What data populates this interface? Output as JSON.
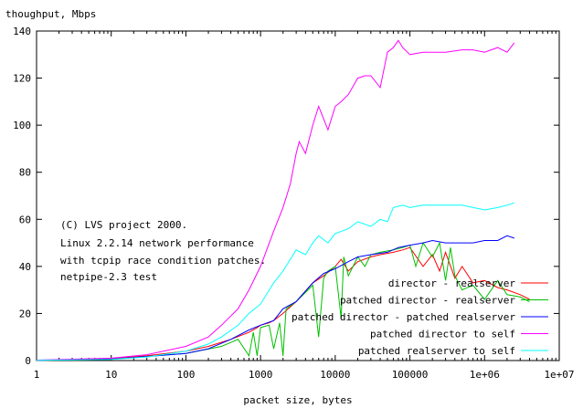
{
  "chart_data": {
    "type": "line",
    "title": "",
    "ylabel": "thoughput, Mbps",
    "xlabel": "packet size, bytes",
    "xscale": "log",
    "xlim": [
      1,
      10000000
    ],
    "ylim": [
      0,
      140
    ],
    "xticks": [
      {
        "value": 1,
        "label": "1"
      },
      {
        "value": 10,
        "label": "10"
      },
      {
        "value": 100,
        "label": "100"
      },
      {
        "value": 1000,
        "label": "1000"
      },
      {
        "value": 10000,
        "label": "10000"
      },
      {
        "value": 100000,
        "label": "100000"
      },
      {
        "value": 1000000,
        "label": "1e+06"
      },
      {
        "value": 10000000,
        "label": "1e+07"
      }
    ],
    "yticks": [
      0,
      20,
      40,
      60,
      80,
      100,
      120,
      140
    ],
    "grid": false,
    "legend_position": "bottom-right",
    "annotation": [
      "(C) LVS project 2000.",
      "Linux 2.2.14 network performance",
      "with tcpip race condition patches.",
      "netpipe-2.3 test"
    ],
    "series": [
      {
        "name": "director -             realserver",
        "color": "#ff0000",
        "x": [
          1,
          3,
          10,
          30,
          100,
          200,
          400,
          700,
          900,
          1000,
          1300,
          1500,
          2000,
          3000,
          5000,
          7000,
          10000,
          12000,
          15000,
          20000,
          30000,
          40000,
          60000,
          80000,
          100000,
          150000,
          200000,
          250000,
          300000,
          400000,
          500000,
          700000,
          1000000,
          1500000,
          2000000,
          3000000,
          4000000
        ],
        "y": [
          0.1,
          0.3,
          0.8,
          2,
          4,
          6,
          9,
          12,
          14,
          15,
          16,
          17,
          20,
          25,
          33,
          36,
          40,
          43,
          38,
          42,
          44,
          45,
          46,
          47,
          48,
          40,
          45,
          38,
          46,
          35,
          40,
          33,
          34,
          31,
          30,
          28,
          26
        ]
      },
      {
        "name": "patched director -      realserver",
        "color": "#00c000",
        "x": [
          1,
          10,
          100,
          300,
          500,
          700,
          800,
          900,
          1000,
          1300,
          1500,
          1800,
          2000,
          2200,
          3000,
          5000,
          6000,
          7000,
          8000,
          10000,
          12000,
          13000,
          15000,
          20000,
          25000,
          30000,
          40000,
          60000,
          80000,
          100000,
          120000,
          150000,
          200000,
          250000,
          300000,
          350000,
          400000,
          500000,
          700000,
          1000000,
          1500000,
          2000000,
          3000000,
          4000000
        ],
        "y": [
          0.1,
          0.5,
          3,
          6,
          9,
          2,
          12,
          2,
          14,
          15,
          5,
          16,
          2,
          22,
          25,
          32,
          10,
          35,
          38,
          40,
          18,
          44,
          36,
          44,
          40,
          45,
          46,
          47,
          48,
          49,
          40,
          50,
          44,
          50,
          34,
          48,
          36,
          30,
          32,
          26,
          34,
          28,
          27,
          25
        ]
      },
      {
        "name": "patched director - patched realserver",
        "color": "#0000ff",
        "x": [
          1,
          10,
          100,
          200,
          400,
          700,
          1000,
          1500,
          2000,
          3000,
          5000,
          7000,
          10000,
          15000,
          20000,
          30000,
          50000,
          70000,
          100000,
          150000,
          200000,
          300000,
          500000,
          700000,
          1000000,
          1500000,
          2000000,
          2500000
        ],
        "y": [
          0.1,
          0.6,
          3,
          5,
          9,
          13,
          15,
          17,
          22,
          25,
          33,
          37,
          39,
          42,
          44,
          45,
          46,
          48,
          49,
          50,
          51,
          50,
          50,
          50,
          51,
          51,
          53,
          52
        ]
      },
      {
        "name": "patched director to self",
        "color": "#ff00ff",
        "x": [
          1,
          10,
          30,
          100,
          200,
          300,
          500,
          700,
          1000,
          1500,
          2000,
          2500,
          3000,
          3300,
          4000,
          5000,
          6000,
          8000,
          10000,
          12000,
          15000,
          20000,
          25000,
          30000,
          40000,
          50000,
          60000,
          70000,
          80000,
          100000,
          150000,
          200000,
          300000,
          500000,
          700000,
          1000000,
          1500000,
          2000000,
          2500000
        ],
        "y": [
          0.2,
          1,
          2.5,
          6,
          10,
          15,
          22,
          30,
          40,
          55,
          65,
          75,
          88,
          93,
          88,
          100,
          108,
          98,
          108,
          110,
          113,
          120,
          121,
          121,
          116,
          131,
          133,
          136,
          133,
          130,
          131,
          131,
          131,
          132,
          132,
          131,
          133,
          131,
          135
        ]
      },
      {
        "name": "patched realserver to self",
        "color": "#00ffff",
        "x": [
          1,
          10,
          30,
          100,
          200,
          300,
          500,
          700,
          1000,
          1500,
          2000,
          2500,
          3000,
          4000,
          5000,
          6000,
          8000,
          10000,
          15000,
          20000,
          30000,
          40000,
          50000,
          60000,
          80000,
          100000,
          150000,
          200000,
          300000,
          500000,
          1000000,
          1500000,
          2000000,
          2500000
        ],
        "y": [
          0.1,
          0.5,
          1.5,
          4,
          7,
          10,
          15,
          20,
          24,
          33,
          38,
          43,
          47,
          45,
          50,
          53,
          50,
          54,
          56,
          59,
          57,
          60,
          59,
          65,
          66,
          65,
          66,
          66,
          66,
          66,
          64,
          65,
          66,
          67
        ]
      }
    ]
  }
}
